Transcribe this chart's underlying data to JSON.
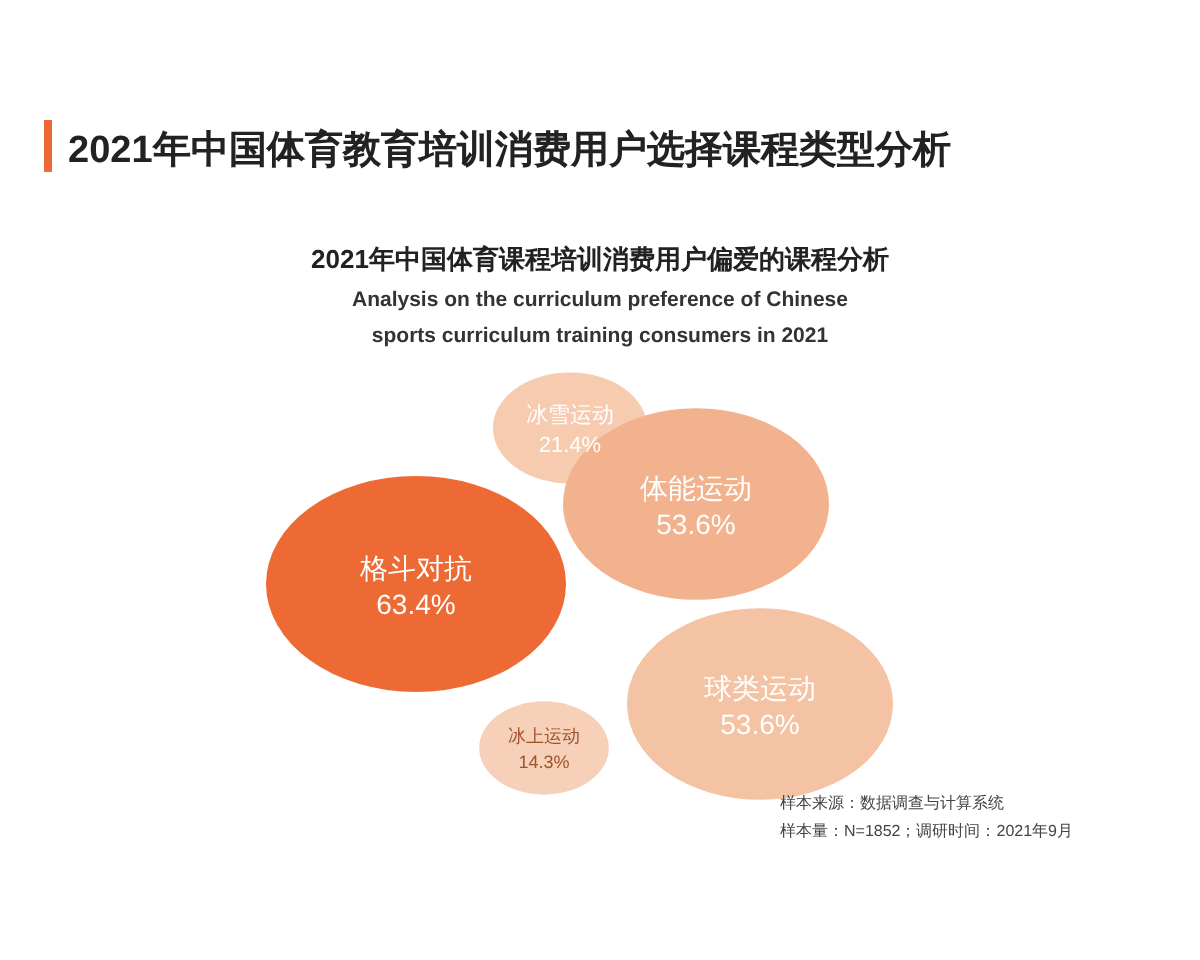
{
  "chart_data": {
    "type": "other",
    "title": "2021年中国体育教育培训消费用户选择课程类型分析",
    "subtitle": "2021年中国体育课程培训消费用户偏爱的课程分析",
    "annotations": [
      "Analysis on the curriculum preference of Chinese sports curriculum training consumers in 2021",
      "样本来源：数据调查与计算系统",
      "样本量：N=1852；调研时间：2021年9月"
    ],
    "categories": [
      "冰雪运动",
      "体能运动",
      "格斗对抗",
      "冰上运动",
      "球类运动"
    ],
    "values": [
      21.4,
      53.6,
      63.4,
      14.3,
      53.6
    ],
    "value_labels": [
      "21.4%",
      "53.6%",
      "63.4%",
      "14.3%",
      "53.6%"
    ],
    "colors": [
      "#f6cbb0",
      "#f1b28d",
      "#ee6a35",
      "#f6d0b8",
      "#f3c3a4"
    ]
  }
}
